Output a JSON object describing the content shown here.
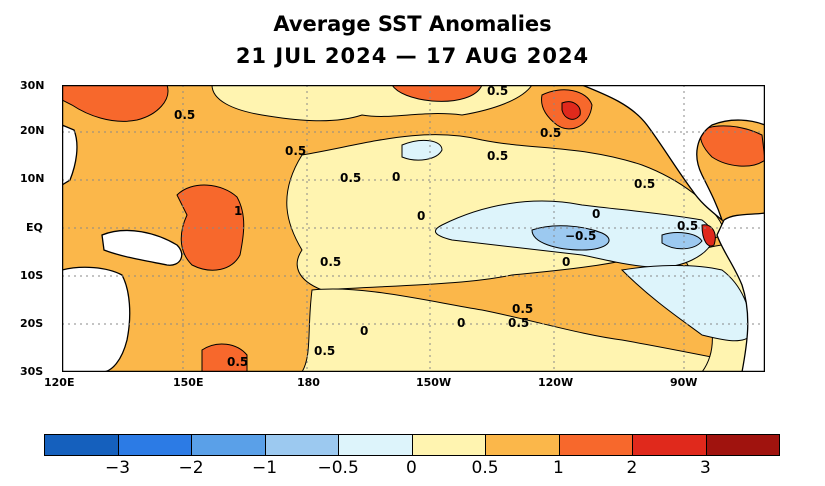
{
  "title": "Average SST Anomalies",
  "subtitle": "21 JUL 2024 — 17 AUG 2024",
  "lat_labels": [
    "30N",
    "20N",
    "10N",
    "EQ",
    "10S",
    "20S",
    "30S"
  ],
  "lon_labels": [
    "120E",
    "150E",
    "180",
    "150W",
    "120W",
    "90W"
  ],
  "contour_labels": [
    "0.5",
    "0.5",
    "0.5",
    "0.5",
    "0.5",
    "0.5",
    "1",
    "0",
    "0.5",
    "0",
    "0",
    "−0.5",
    "0.5",
    "0.5",
    "0",
    "0",
    "0.5",
    "0.5",
    "0",
    "0.5",
    "0.5"
  ],
  "colorbar": {
    "colors": [
      "#1560bd",
      "#2c7be5",
      "#5aa0e8",
      "#9cc9f0",
      "#ddf4fb",
      "#fff4b0",
      "#fbb74a",
      "#f7682c",
      "#e0291c",
      "#a0130e"
    ],
    "labels": [
      "−3",
      "−2",
      "−1",
      "−0.5",
      "0",
      "0.5",
      "1",
      "2",
      "3"
    ]
  },
  "land_color": "#ffffff",
  "grid": true
}
